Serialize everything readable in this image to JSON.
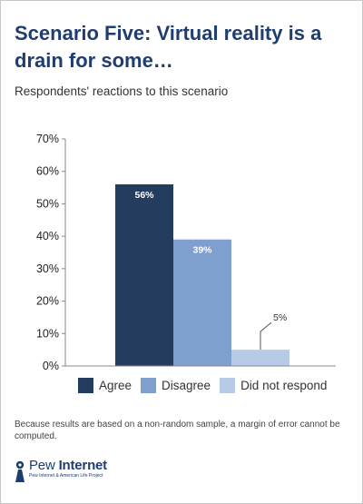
{
  "title": "Scenario Five: Virtual reality is a drain for some…",
  "subtitle": "Respondents' reactions to this scenario",
  "chart_data": {
    "type": "bar",
    "title": "",
    "xlabel": "",
    "ylabel": "",
    "categories": [
      "Agree",
      "Disagree",
      "Did not respond"
    ],
    "values": [
      56,
      39,
      5
    ],
    "value_labels": [
      "56%",
      "39%",
      "5%"
    ],
    "colors": [
      "#243c5e",
      "#7f9fce",
      "#b8cbe6"
    ],
    "ylim": [
      0,
      70
    ],
    "yticks": [
      0,
      10,
      20,
      30,
      40,
      50,
      60,
      70
    ],
    "ytick_labels": [
      "0%",
      "10%",
      "20%",
      "30%",
      "40%",
      "50%",
      "60%",
      "70%"
    ],
    "grid": false,
    "legend": "bottom"
  },
  "footnote": "Because results are based on a non-random sample, a margin of error cannot be computed.",
  "logo": {
    "brand_light": "Pew ",
    "brand_bold": "Internet",
    "tagline": "Pew Internet & American Life Project",
    "color": "#1f3d6e"
  }
}
